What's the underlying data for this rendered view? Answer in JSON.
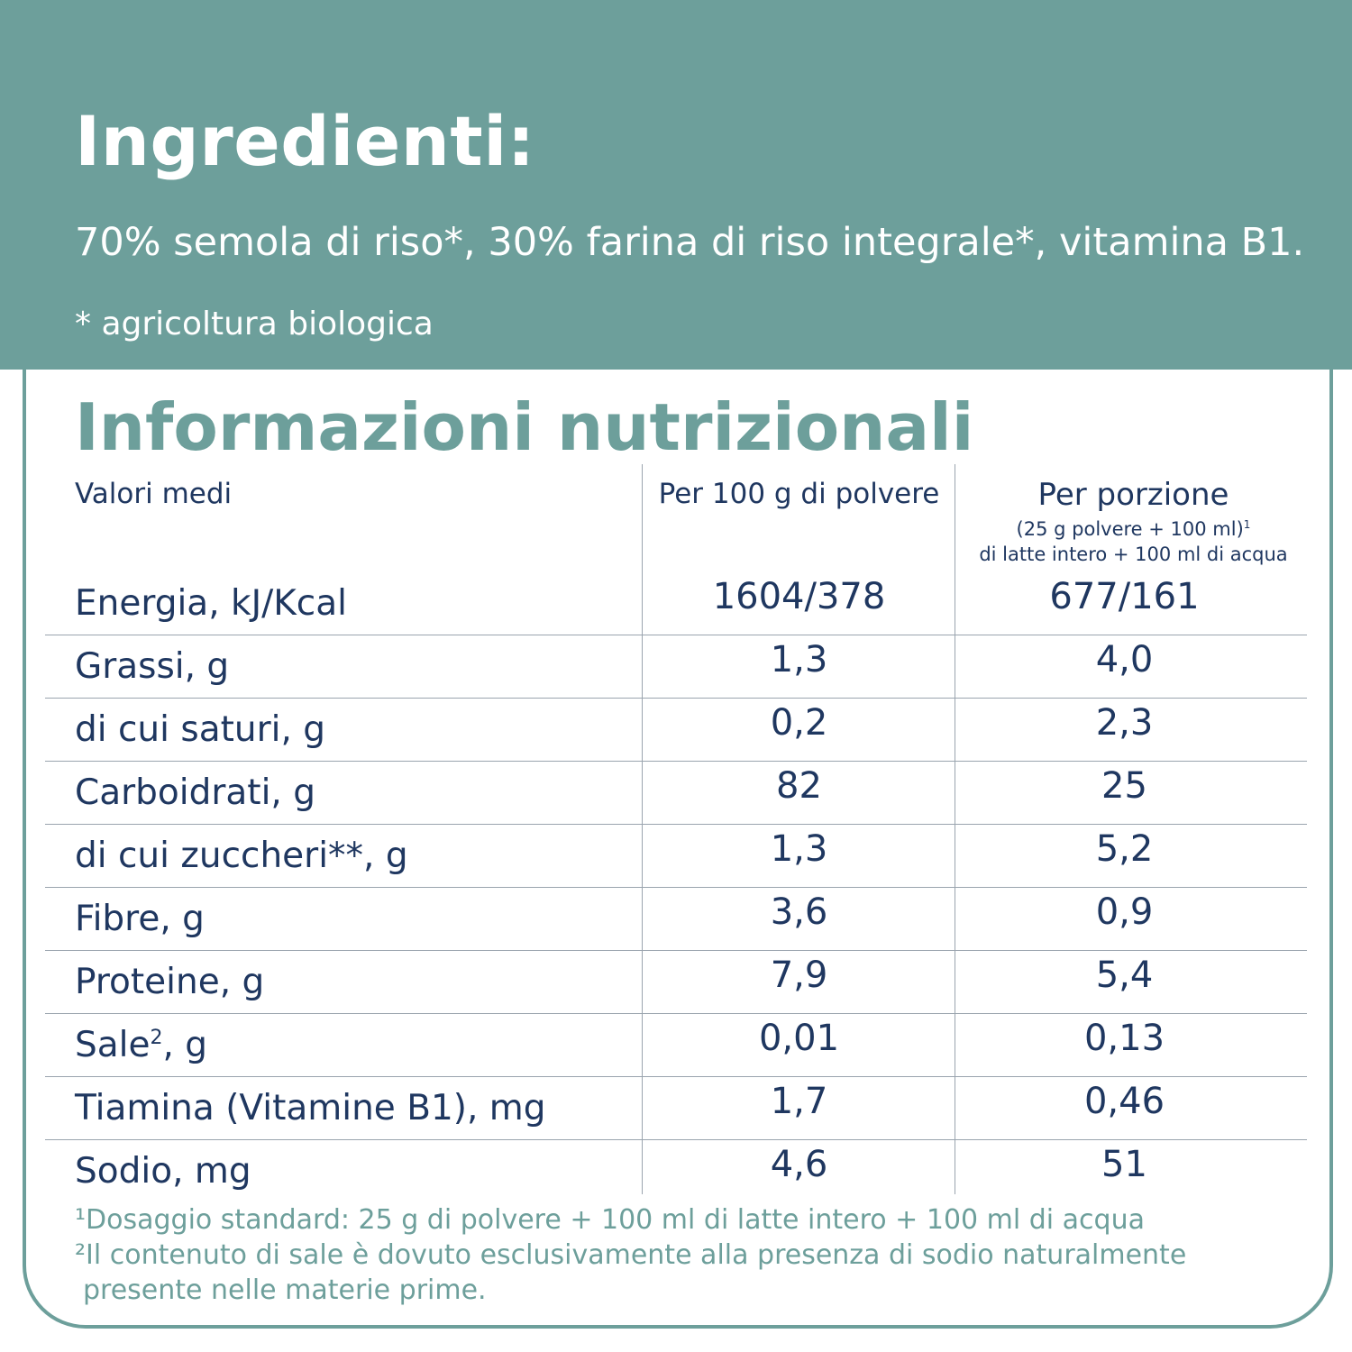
{
  "header": {
    "title": "Ingredienti:",
    "ingredients": "70% semola di riso*, 30% farina di riso integrale*, vitamina B1.",
    "note": "* agricoltura biologica"
  },
  "nutrition": {
    "title": "Informazioni nutrizionali",
    "col_label": "Valori medi",
    "col_per100": "Per 100 g di polvere",
    "col_portion": "Per porzione",
    "col_portion_sub1": "(25 g polvere + 100 ml)",
    "col_portion_sup": "1",
    "col_portion_sub2": "di latte intero + 100 ml di acqua",
    "rows": [
      {
        "label": "Energia, kJ/Kcal",
        "per100": "1604/378",
        "portion": "677/161"
      },
      {
        "label": "Grassi, g",
        "per100": "1,3",
        "portion": "4,0"
      },
      {
        "label": "di cui saturi, g",
        "per100": "0,2",
        "portion": "2,3"
      },
      {
        "label": "Carboidrati, g",
        "per100": "82",
        "portion": "25"
      },
      {
        "label": "di cui zuccheri**, g",
        "per100": "1,3",
        "portion": "5,2"
      },
      {
        "label": "Fibre, g",
        "per100": "3,6",
        "portion": "0,9"
      },
      {
        "label": "Proteine, g",
        "per100": "7,9",
        "portion": "5,4"
      },
      {
        "label_pre": "Sale",
        "label_sup": "2",
        "label_post": ", g",
        "per100": "0,01",
        "portion": "0,13"
      },
      {
        "label": "Tiamina (Vitamine B1), mg",
        "per100": "1,7",
        "portion": "0,46"
      },
      {
        "label": "Sodio, mg",
        "per100": "4,6",
        "portion": "51"
      }
    ],
    "footnote1": "¹Dosaggio standard: 25 g di polvere + 100 ml di latte intero + 100 ml di acqua",
    "footnote2_line1": "²Il contenuto di sale è dovuto esclusivamente alla presenza di sodio naturalmente",
    "footnote2_line2": "presente nelle materie prime."
  },
  "colors": {
    "accent": "#6d9f9b",
    "text": "#1f3760",
    "rule": "#9aa4ae"
  }
}
